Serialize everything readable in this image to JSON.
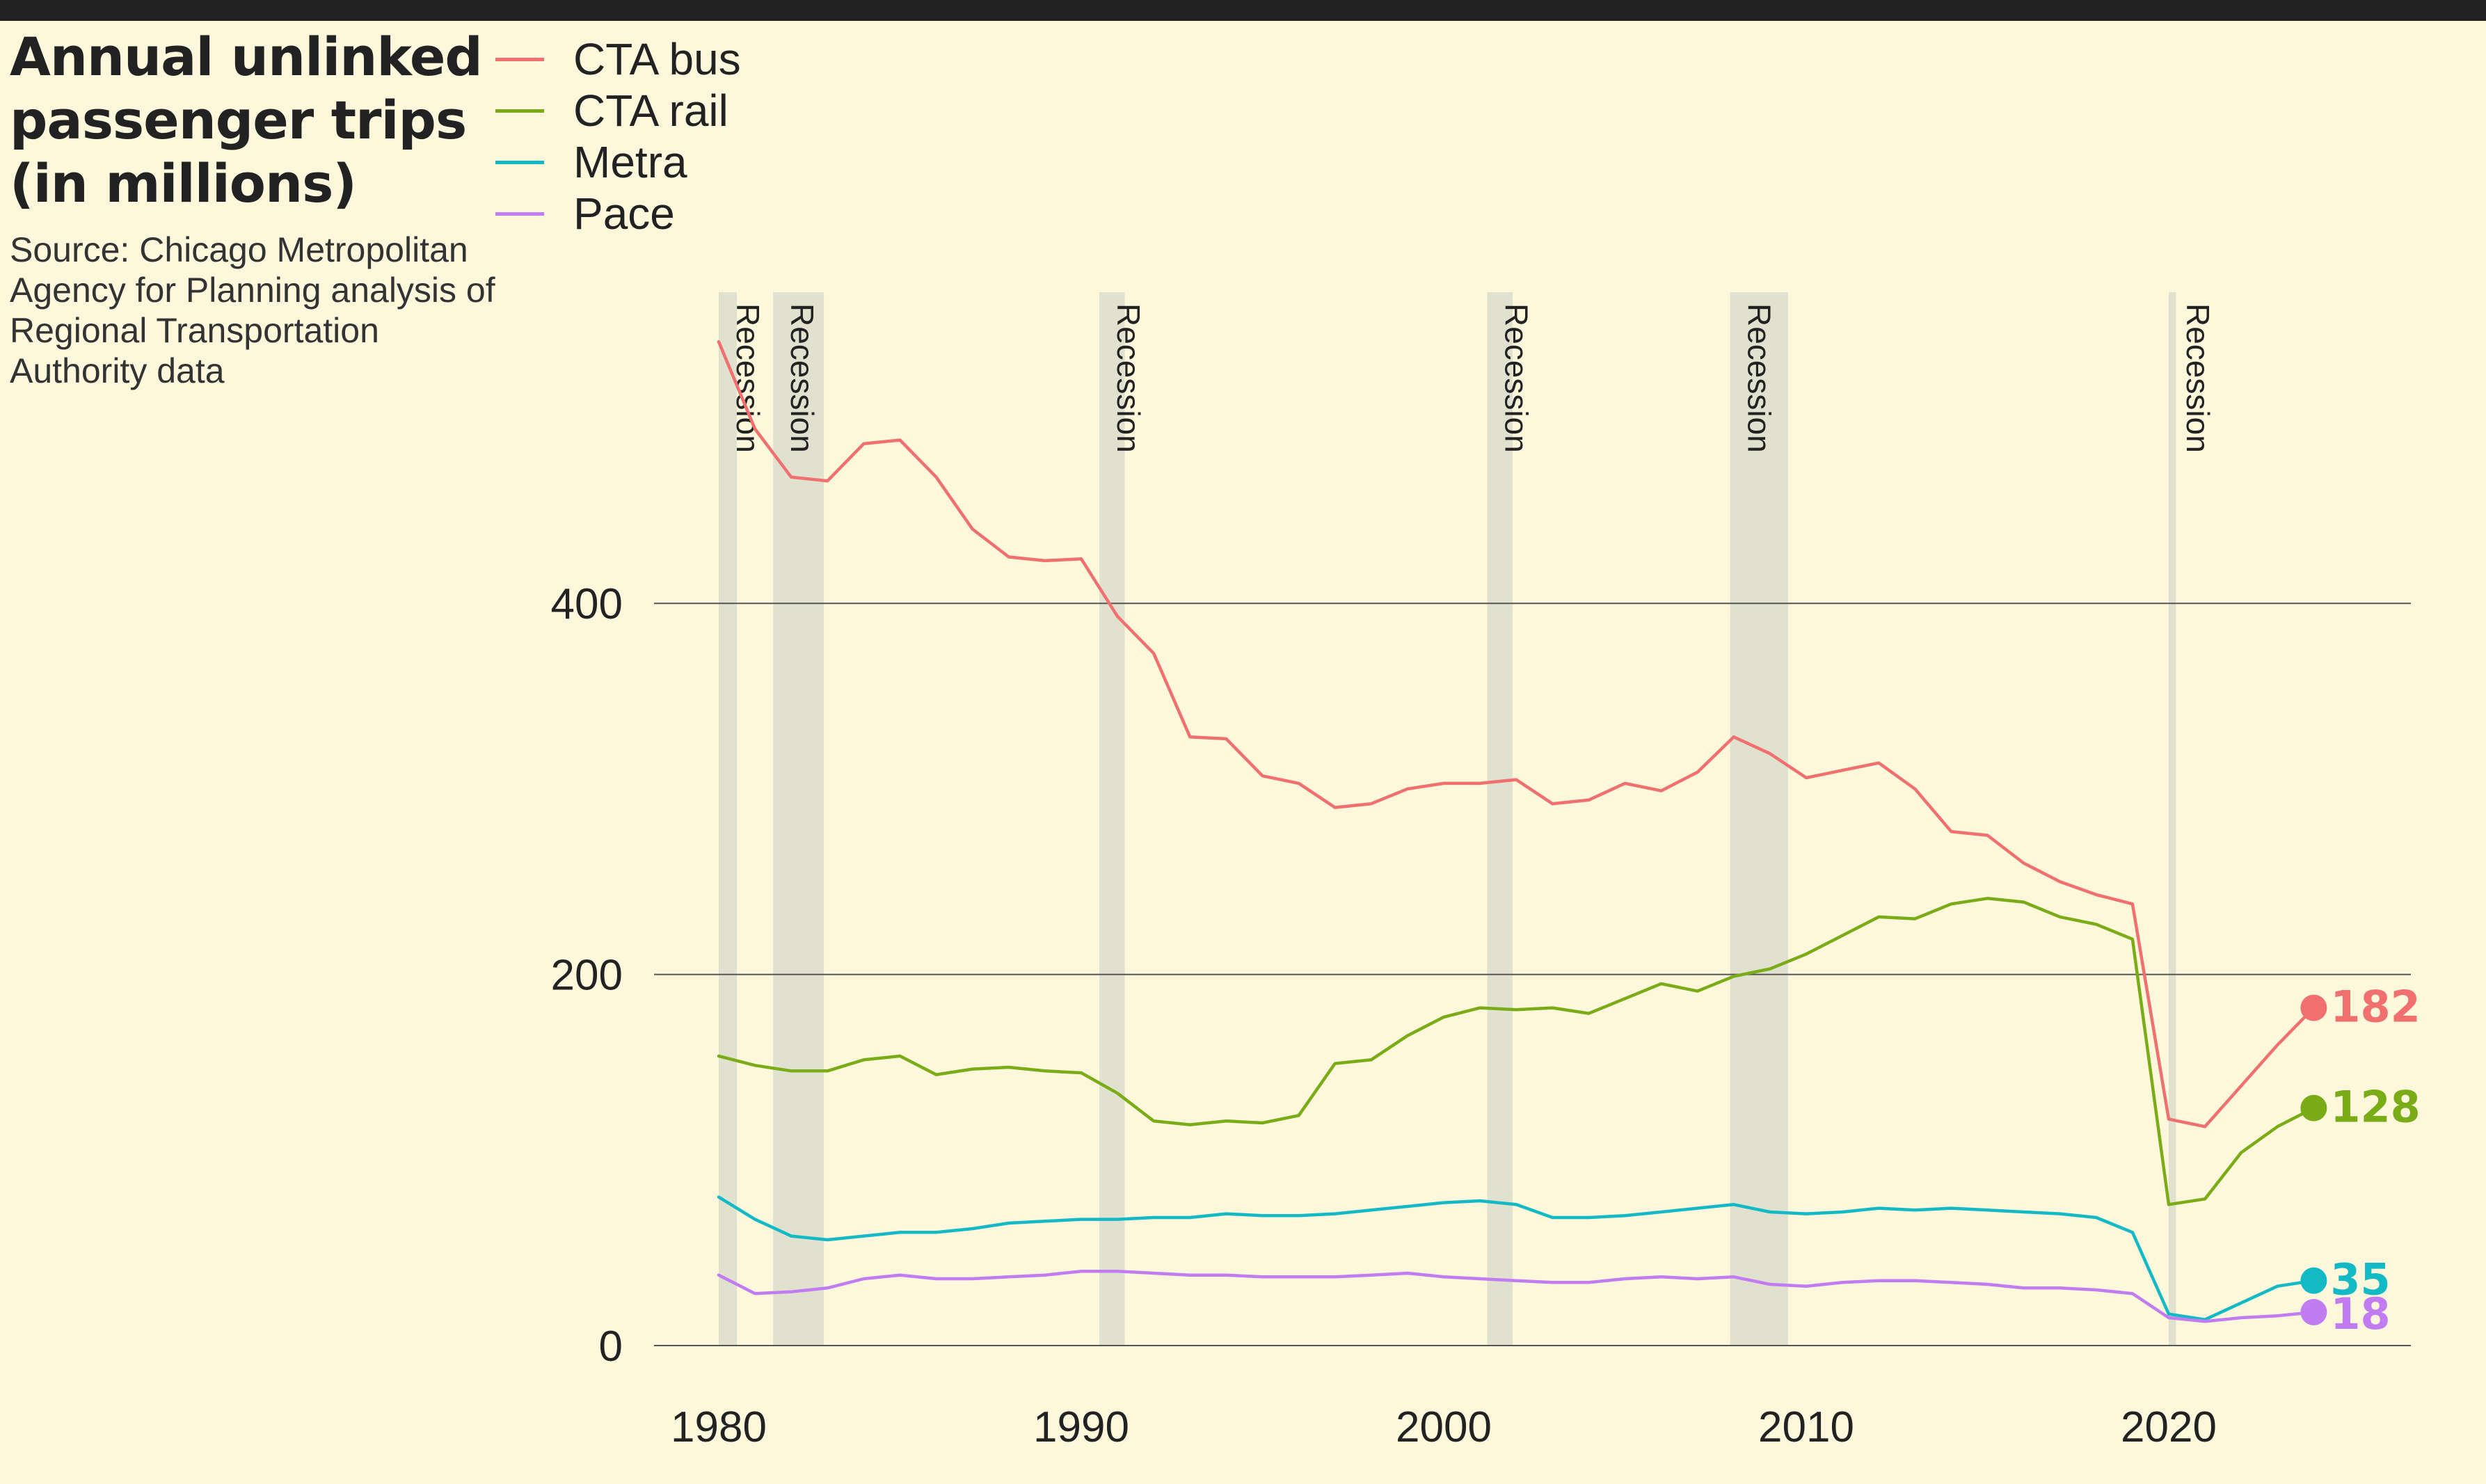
{
  "header": {
    "title": "Annual unlinked passenger trips (in millions)",
    "source": "Source: Chicago Metropolitan Agency for Planning analysis of Regional Transportation Authority data"
  },
  "colors": {
    "background": "#fdf7dc",
    "cta_bus": "#f07070",
    "cta_rail": "#7aac18",
    "metra": "#14b9c6",
    "pace": "#c07cf0",
    "recession": "#e1e1cf",
    "grid": "#555555"
  },
  "chart_data": {
    "type": "line",
    "title": "Annual unlinked passenger trips (in millions)",
    "xlabel": "",
    "ylabel": "",
    "xlim": [
      1980,
      2026
    ],
    "ylim": [
      0,
      540
    ],
    "x_ticks": [
      1980,
      1990,
      2000,
      2010,
      2020
    ],
    "y_ticks": [
      0,
      200,
      400
    ],
    "grid": "horizontal",
    "legend": "top-left",
    "x": [
      1980,
      1981,
      1982,
      1983,
      1984,
      1985,
      1986,
      1987,
      1988,
      1989,
      1990,
      1991,
      1992,
      1993,
      1994,
      1995,
      1996,
      1997,
      1998,
      1999,
      2000,
      2001,
      2002,
      2003,
      2004,
      2005,
      2006,
      2007,
      2008,
      2009,
      2010,
      2011,
      2012,
      2013,
      2014,
      2015,
      2016,
      2017,
      2018,
      2019,
      2020,
      2021,
      2022,
      2023,
      2024
    ],
    "series": [
      {
        "name": "CTA bus",
        "values": [
          541,
          494,
          468,
          466,
          486,
          488,
          468,
          440,
          425,
          423,
          424,
          393,
          373,
          328,
          327,
          307,
          303,
          290,
          292,
          300,
          303,
          303,
          305,
          292,
          294,
          303,
          299,
          309,
          328,
          319,
          306,
          310,
          314,
          300,
          277,
          275,
          260,
          250,
          243,
          238,
          122,
          118,
          140,
          162,
          182
        ]
      },
      {
        "name": "CTA rail",
        "values": [
          156,
          151,
          148,
          148,
          154,
          156,
          146,
          149,
          150,
          148,
          147,
          136,
          121,
          119,
          121,
          120,
          124,
          152,
          154,
          167,
          177,
          182,
          181,
          182,
          179,
          187,
          195,
          191,
          199,
          203,
          211,
          221,
          231,
          230,
          238,
          241,
          239,
          231,
          227,
          219,
          76,
          79,
          104,
          118,
          128
        ]
      },
      {
        "name": "Metra",
        "values": [
          80,
          68,
          59,
          57,
          59,
          61,
          61,
          63,
          66,
          67,
          68,
          68,
          69,
          69,
          71,
          70,
          70,
          71,
          73,
          75,
          77,
          78,
          76,
          69,
          69,
          70,
          72,
          74,
          76,
          72,
          71,
          72,
          74,
          73,
          74,
          73,
          72,
          71,
          69,
          61,
          17,
          14,
          23,
          32,
          35
        ]
      },
      {
        "name": "Pace",
        "values": [
          38,
          28,
          29,
          31,
          36,
          38,
          36,
          36,
          37,
          38,
          40,
          40,
          39,
          38,
          38,
          37,
          37,
          37,
          38,
          39,
          37,
          36,
          35,
          34,
          34,
          36,
          37,
          36,
          37,
          33,
          32,
          34,
          35,
          35,
          34,
          33,
          31,
          31,
          30,
          28,
          15,
          13,
          15,
          16,
          18
        ]
      }
    ],
    "end_labels": [
      "182",
      "128",
      "35",
      "18"
    ],
    "recessions": [
      {
        "start": 1980.0,
        "end": 1980.5,
        "label": "Recession"
      },
      {
        "start": 1981.5,
        "end": 1982.9,
        "label": "Recession"
      },
      {
        "start": 1990.5,
        "end": 1991.2,
        "label": "Recession"
      },
      {
        "start": 2001.2,
        "end": 2001.9,
        "label": "Recession"
      },
      {
        "start": 2007.9,
        "end": 2009.5,
        "label": "Recession"
      },
      {
        "start": 2020.0,
        "end": 2020.2,
        "label": "Recession"
      }
    ]
  }
}
